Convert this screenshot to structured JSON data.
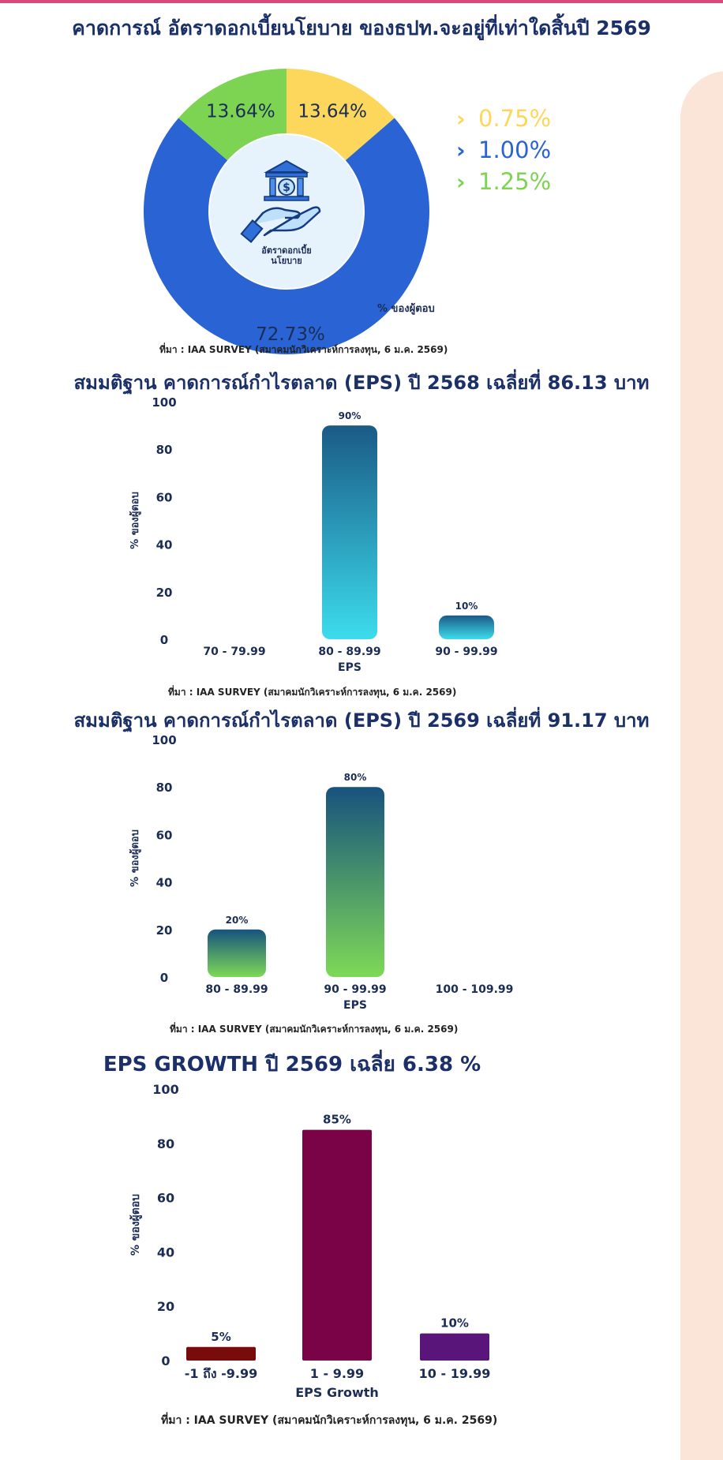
{
  "donut": {
    "title": "คาดการณ์ อัตราดอกเบี้ยนโยบาย ของธปท.จะอยู่ที่เท่าใดสิ้นปี 2569",
    "center_label_line1": "อัตราดอกเบี้ย",
    "center_label_line2": "นโยบาย",
    "axis_note": "% ของผู้ตอบ",
    "source": "ที่มา : IAA SURVEY (สมาคมนักวิเคราะห์การลงทุน, 6 ม.ค. 2569)",
    "legend_marker": "›",
    "icon": "bank-hand-icon"
  },
  "eps2568": {
    "title": "สมมติฐาน คาดการณ์กำไรตลาด (EPS) ปี 2568 เฉลี่ยที่ 86.13 บาท",
    "source": "ที่มา : IAA SURVEY (สมาคมนักวิเคราะห์การลงทุน, 6 ม.ค. 2569)"
  },
  "eps2569": {
    "title": "สมมติฐาน คาดการณ์กำไรตลาด (EPS) ปี 2569 เฉลี่ยที่ 91.17 บาท",
    "source": "ที่มา : IAA SURVEY (สมาคมนักวิเคราะห์การลงทุน, 6 ม.ค. 2569)"
  },
  "growth": {
    "title": "EPS GROWTH ปี 2569 เฉลี่ย  6.38 %",
    "source": "ที่มา : IAA SURVEY (สมาคมนักวิเคราะห์การลงทุน, 6 ม.ค. 2569)"
  },
  "chart_data": [
    {
      "type": "pie",
      "title": "คาดการณ์ อัตราดอกเบี้ยนโยบาย ของธปท.จะอยู่ที่เท่าใดสิ้นปี 2569",
      "categories": [
        "0.75%",
        "1.00%",
        "1.25%"
      ],
      "values": [
        13.64,
        72.73,
        13.64
      ],
      "labels": [
        "13.64%",
        "72.73%",
        "13.64%"
      ],
      "colors": [
        "#fcd75b",
        "#2a63d4",
        "#7dd452"
      ],
      "legend": "right"
    },
    {
      "type": "bar",
      "title": "สมมติฐาน คาดการณ์กำไรตลาด (EPS) ปี 2568 เฉลี่ยที่ 86.13 บาท",
      "categories": [
        "70 - 79.99",
        "80 - 89.99",
        "90 - 99.99"
      ],
      "values": [
        0,
        90,
        10
      ],
      "labels": [
        "",
        "90%",
        "10%"
      ],
      "xlabel": "EPS",
      "ylabel": "% ของผู้ตอบ",
      "ylim": [
        0,
        100
      ],
      "yticks": [
        0,
        20,
        40,
        60,
        80,
        100
      ],
      "colors": [
        "#1a5a86",
        "#3cdcec"
      ]
    },
    {
      "type": "bar",
      "title": "สมมติฐาน คาดการณ์กำไรตลาด (EPS) ปี 2569 เฉลี่ยที่ 91.17 บาท",
      "categories": [
        "80 - 89.99",
        "90 - 99.99",
        "100 - 109.99"
      ],
      "values": [
        20,
        80,
        0
      ],
      "labels": [
        "20%",
        "80%",
        ""
      ],
      "xlabel": "EPS",
      "ylabel": "% ของผู้ตอบ",
      "ylim": [
        0,
        100
      ],
      "yticks": [
        0,
        20,
        40,
        60,
        80,
        100
      ],
      "colors": [
        "#17527e",
        "#7ed957"
      ]
    },
    {
      "type": "bar",
      "title": "EPS GROWTH ปี 2569 เฉลี่ย  6.38 %",
      "categories": [
        "-1 ถึง -9.99",
        "1 - 9.99",
        "10 - 19.99"
      ],
      "values": [
        5,
        85,
        10
      ],
      "labels": [
        "5%",
        "85%",
        "10%"
      ],
      "xlabel": "EPS Growth",
      "ylabel": "% ของผู้ตอบ",
      "ylim": [
        0,
        100
      ],
      "yticks": [
        0,
        20,
        40,
        60,
        80,
        100
      ],
      "bar_colors": [
        "#7a0b0b",
        "#7a0347",
        "#5a157a"
      ]
    }
  ]
}
